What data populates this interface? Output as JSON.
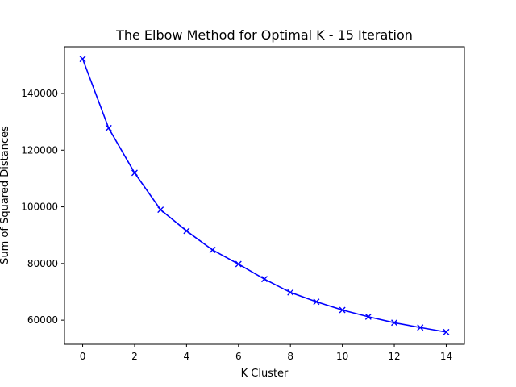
{
  "chart_data": {
    "type": "line",
    "title": "The Elbow Method for Optimal K - 15 Iteration",
    "xlabel": "K Cluster",
    "ylabel": "Sum of Squared Distances",
    "xlim": [
      -0.7,
      14.7
    ],
    "ylim": [
      51500,
      156500
    ],
    "x_ticks": [
      0,
      2,
      4,
      6,
      8,
      10,
      12,
      14
    ],
    "y_ticks": [
      60000,
      80000,
      100000,
      120000,
      140000
    ],
    "grid": false,
    "series": [
      {
        "color": "#0000ff",
        "marker": "x",
        "x": [
          0,
          1,
          2,
          3,
          4,
          5,
          6,
          7,
          8,
          9,
          10,
          11,
          12,
          13,
          14
        ],
        "y": [
          152200,
          127800,
          112000,
          99000,
          91500,
          84800,
          79800,
          74500,
          69800,
          66500,
          63600,
          61200,
          59100,
          57400,
          55800
        ]
      }
    ]
  }
}
